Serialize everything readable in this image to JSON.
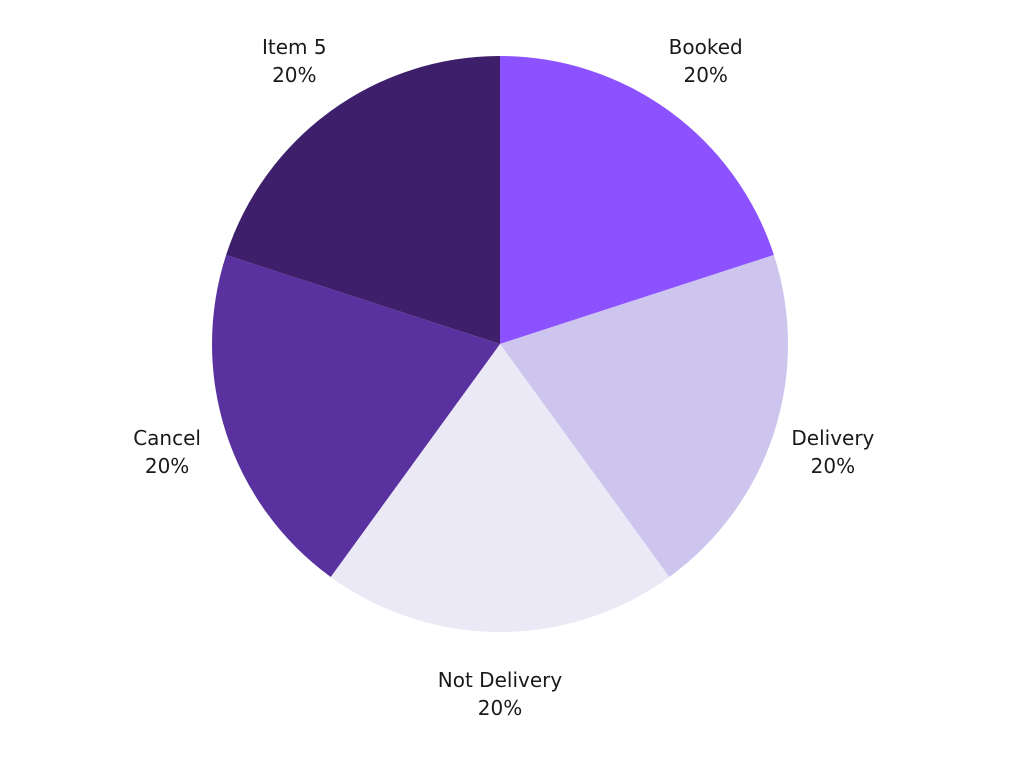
{
  "chart_data": {
    "type": "pie",
    "title": "",
    "start_angle_deg": 0,
    "direction": "clockwise",
    "legend": "none",
    "categories": [
      "Booked",
      "Delivery",
      "Not Delivery",
      "Cancel",
      "Item 5"
    ],
    "values": [
      20,
      20,
      20,
      20,
      20
    ],
    "labels": [
      "20%",
      "20%",
      "20%",
      "20%",
      "20%"
    ],
    "colors": [
      "#8c52ff",
      "#cdc5ee",
      "#ece9f7",
      "#5932a0",
      "#3d1f6b"
    ]
  }
}
